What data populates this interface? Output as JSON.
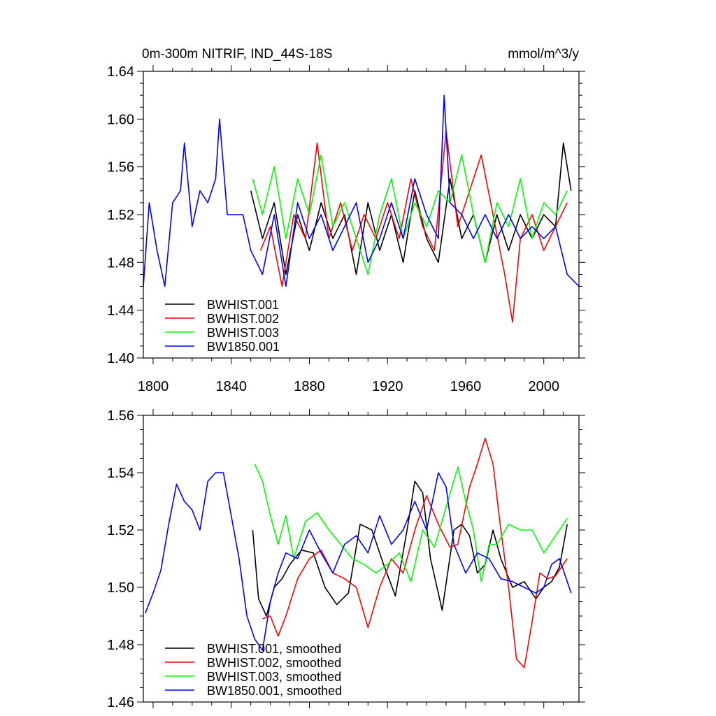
{
  "colors": {
    "BWHIST.001": "#000000",
    "BWHIST.002": "#ff0000",
    "BWHIST.003": "#00ff00",
    "BW1850.001": "#0000ff"
  },
  "chart_data": [
    {
      "type": "line",
      "title": "0m-300m NITRIF, IND_44S-18S",
      "units": "mmol/m^3/y",
      "xlabel": "",
      "ylabel": "",
      "xlim": [
        1795,
        2018
      ],
      "ylim": [
        1.4,
        1.64
      ],
      "xticks": [
        1800,
        1840,
        1880,
        1920,
        1960,
        2000
      ],
      "xtick_labels": [
        "1800",
        "1840",
        "1880",
        "1920",
        "1960",
        "2000"
      ],
      "yticks": [
        1.4,
        1.44,
        1.48,
        1.52,
        1.56,
        1.6,
        1.64
      ],
      "ytick_labels": [
        "1.40",
        "1.44",
        "1.48",
        "1.52",
        "1.56",
        "1.60",
        "1.64"
      ],
      "legend_position": "bottom-left",
      "series": [
        {
          "name": "BWHIST.001",
          "x": [
            1850,
            1856,
            1862,
            1868,
            1874,
            1880,
            1886,
            1892,
            1898,
            1904,
            1910,
            1916,
            1922,
            1928,
            1934,
            1940,
            1946,
            1952,
            1958,
            1964,
            1970,
            1976,
            1982,
            1988,
            1994,
            2000,
            2006,
            2010,
            2014
          ],
          "y": [
            1.54,
            1.5,
            1.53,
            1.47,
            1.52,
            1.49,
            1.53,
            1.5,
            1.52,
            1.47,
            1.53,
            1.49,
            1.52,
            1.48,
            1.54,
            1.5,
            1.48,
            1.55,
            1.5,
            1.52,
            1.48,
            1.52,
            1.49,
            1.52,
            1.5,
            1.52,
            1.51,
            1.58,
            1.54
          ]
        },
        {
          "name": "BWHIST.002",
          "x": [
            1855,
            1860,
            1866,
            1872,
            1878,
            1884,
            1890,
            1896,
            1902,
            1908,
            1914,
            1920,
            1926,
            1932,
            1938,
            1944,
            1950,
            1956,
            1962,
            1968,
            1974,
            1980,
            1984,
            1988,
            1994,
            2000,
            2006,
            2012
          ],
          "y": [
            1.49,
            1.51,
            1.46,
            1.52,
            1.5,
            1.58,
            1.5,
            1.53,
            1.49,
            1.52,
            1.5,
            1.53,
            1.5,
            1.55,
            1.51,
            1.49,
            1.59,
            1.51,
            1.54,
            1.57,
            1.52,
            1.47,
            1.43,
            1.5,
            1.52,
            1.49,
            1.51,
            1.53
          ]
        },
        {
          "name": "BWHIST.003",
          "x": [
            1851,
            1856,
            1862,
            1868,
            1874,
            1880,
            1886,
            1892,
            1898,
            1904,
            1910,
            1916,
            1922,
            1928,
            1934,
            1940,
            1946,
            1952,
            1958,
            1964,
            1970,
            1976,
            1982,
            1988,
            1994,
            2000,
            2006,
            2012
          ],
          "y": [
            1.55,
            1.52,
            1.56,
            1.5,
            1.55,
            1.52,
            1.57,
            1.51,
            1.53,
            1.5,
            1.47,
            1.52,
            1.55,
            1.5,
            1.53,
            1.51,
            1.54,
            1.53,
            1.57,
            1.52,
            1.48,
            1.53,
            1.51,
            1.55,
            1.5,
            1.53,
            1.52,
            1.54
          ]
        },
        {
          "name": "BW1850.001",
          "x": [
            1795,
            1798,
            1802,
            1806,
            1810,
            1814,
            1816,
            1820,
            1824,
            1828,
            1832,
            1834,
            1838,
            1842,
            1846,
            1850,
            1856,
            1862,
            1868,
            1874,
            1880,
            1886,
            1892,
            1898,
            1904,
            1910,
            1916,
            1922,
            1928,
            1934,
            1940,
            1946,
            1949,
            1952,
            1958,
            1964,
            1970,
            1976,
            1982,
            1988,
            1994,
            2000,
            2006,
            2012,
            2018
          ],
          "y": [
            1.46,
            1.53,
            1.49,
            1.46,
            1.53,
            1.54,
            1.58,
            1.51,
            1.54,
            1.53,
            1.55,
            1.6,
            1.52,
            1.52,
            1.52,
            1.49,
            1.47,
            1.52,
            1.46,
            1.53,
            1.5,
            1.52,
            1.49,
            1.51,
            1.53,
            1.48,
            1.5,
            1.53,
            1.5,
            1.55,
            1.52,
            1.5,
            1.62,
            1.53,
            1.52,
            1.5,
            1.52,
            1.5,
            1.52,
            1.5,
            1.51,
            1.5,
            1.51,
            1.47,
            1.46
          ]
        }
      ]
    },
    {
      "type": "line",
      "title": "",
      "xlabel": "",
      "ylabel": "",
      "xlim": [
        1795,
        2018
      ],
      "ylim": [
        1.46,
        1.56
      ],
      "xticks": [
        1800,
        1840,
        1880,
        1920,
        1960,
        2000
      ],
      "yticks": [
        1.46,
        1.48,
        1.5,
        1.52,
        1.54,
        1.56
      ],
      "ytick_labels": [
        "1.46",
        "1.48",
        "1.50",
        "1.52",
        "1.54",
        "1.56"
      ],
      "legend_position": "bottom-left",
      "series": [
        {
          "name": "BWHIST.001, smoothed",
          "x": [
            1851,
            1854,
            1858,
            1862,
            1866,
            1870,
            1876,
            1882,
            1888,
            1894,
            1900,
            1906,
            1912,
            1918,
            1924,
            1930,
            1934,
            1938,
            1942,
            1948,
            1954,
            1958,
            1962,
            1966,
            1970,
            1974,
            1978,
            1984,
            1990,
            1996,
            2000,
            2004,
            2008,
            2012
          ],
          "y": [
            1.52,
            1.496,
            1.49,
            1.5,
            1.503,
            1.508,
            1.513,
            1.512,
            1.5,
            1.494,
            1.498,
            1.522,
            1.52,
            1.508,
            1.497,
            1.52,
            1.537,
            1.533,
            1.51,
            1.492,
            1.52,
            1.522,
            1.518,
            1.505,
            1.508,
            1.52,
            1.51,
            1.5,
            1.502,
            1.496,
            1.5,
            1.502,
            1.507,
            1.522
          ]
        },
        {
          "name": "BWHIST.002, smoothed",
          "x": [
            1856,
            1860,
            1864,
            1868,
            1874,
            1880,
            1886,
            1892,
            1898,
            1904,
            1910,
            1916,
            1922,
            1928,
            1934,
            1940,
            1946,
            1952,
            1956,
            1962,
            1966,
            1970,
            1974,
            1978,
            1982,
            1986,
            1990,
            1994,
            1998,
            2002,
            2006,
            2012
          ],
          "y": [
            1.489,
            1.49,
            1.483,
            1.49,
            1.503,
            1.51,
            1.513,
            1.505,
            1.503,
            1.5,
            1.486,
            1.5,
            1.51,
            1.505,
            1.52,
            1.532,
            1.522,
            1.514,
            1.515,
            1.535,
            1.543,
            1.552,
            1.543,
            1.52,
            1.5,
            1.475,
            1.472,
            1.488,
            1.505,
            1.503,
            1.504,
            1.51
          ]
        },
        {
          "name": "BWHIST.003, smoothed",
          "x": [
            1852,
            1856,
            1860,
            1864,
            1868,
            1872,
            1878,
            1884,
            1890,
            1896,
            1902,
            1908,
            1914,
            1920,
            1926,
            1932,
            1938,
            1944,
            1950,
            1956,
            1960,
            1964,
            1968,
            1972,
            1976,
            1982,
            1988,
            1994,
            2000,
            2006,
            2012
          ],
          "y": [
            1.543,
            1.537,
            1.525,
            1.515,
            1.525,
            1.51,
            1.523,
            1.526,
            1.52,
            1.515,
            1.51,
            1.508,
            1.505,
            1.508,
            1.512,
            1.502,
            1.52,
            1.514,
            1.528,
            1.542,
            1.53,
            1.52,
            1.502,
            1.515,
            1.515,
            1.522,
            1.52,
            1.52,
            1.512,
            1.518,
            1.524
          ]
        },
        {
          "name": "BW1850.001, smoothed",
          "x": [
            1796,
            1800,
            1804,
            1808,
            1812,
            1816,
            1820,
            1824,
            1828,
            1832,
            1836,
            1840,
            1844,
            1848,
            1852,
            1856,
            1860,
            1864,
            1868,
            1874,
            1880,
            1886,
            1892,
            1898,
            1904,
            1910,
            1916,
            1922,
            1928,
            1934,
            1940,
            1946,
            1950,
            1954,
            1960,
            1966,
            1972,
            1978,
            1984,
            1990,
            1996,
            2000,
            2004,
            2008,
            2014
          ],
          "y": [
            1.491,
            1.498,
            1.506,
            1.522,
            1.536,
            1.53,
            1.527,
            1.52,
            1.537,
            1.54,
            1.54,
            1.525,
            1.51,
            1.49,
            1.482,
            1.478,
            1.495,
            1.505,
            1.512,
            1.51,
            1.52,
            1.512,
            1.505,
            1.515,
            1.518,
            1.512,
            1.525,
            1.515,
            1.52,
            1.53,
            1.52,
            1.54,
            1.535,
            1.515,
            1.505,
            1.512,
            1.51,
            1.503,
            1.502,
            1.5,
            1.498,
            1.5,
            1.508,
            1.51,
            1.498
          ]
        }
      ]
    }
  ]
}
